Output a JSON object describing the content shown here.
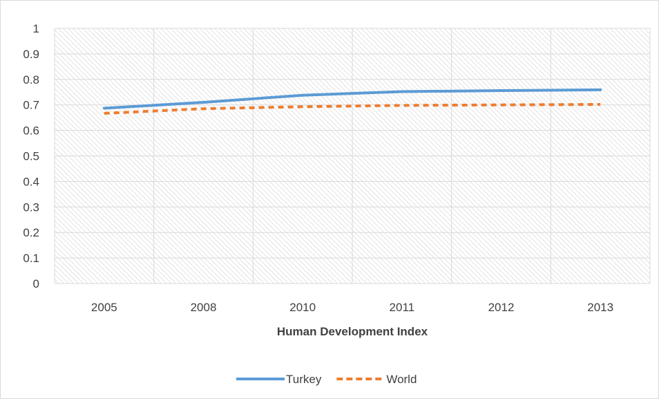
{
  "chart_data": {
    "type": "line",
    "title": "",
    "xlabel": "Human Development Index",
    "ylabel": "",
    "categories": [
      "2005",
      "2008",
      "2010",
      "2011",
      "2012",
      "2013"
    ],
    "ylim": [
      0,
      1
    ],
    "yticks": [
      "0",
      "0.1",
      "0.2",
      "0.3",
      "0.4",
      "0.5",
      "0.6",
      "0.7",
      "0.8",
      "0.9",
      "1"
    ],
    "grid": true,
    "legend_position": "bottom",
    "series": [
      {
        "name": "Turkey",
        "values": [
          0.687,
          0.71,
          0.738,
          0.752,
          0.756,
          0.759
        ],
        "color": "#5b9bd5",
        "style": "solid"
      },
      {
        "name": "World",
        "values": [
          0.667,
          0.685,
          0.693,
          0.698,
          0.7,
          0.702
        ],
        "color": "#ed7d31",
        "style": "dashed"
      }
    ]
  }
}
